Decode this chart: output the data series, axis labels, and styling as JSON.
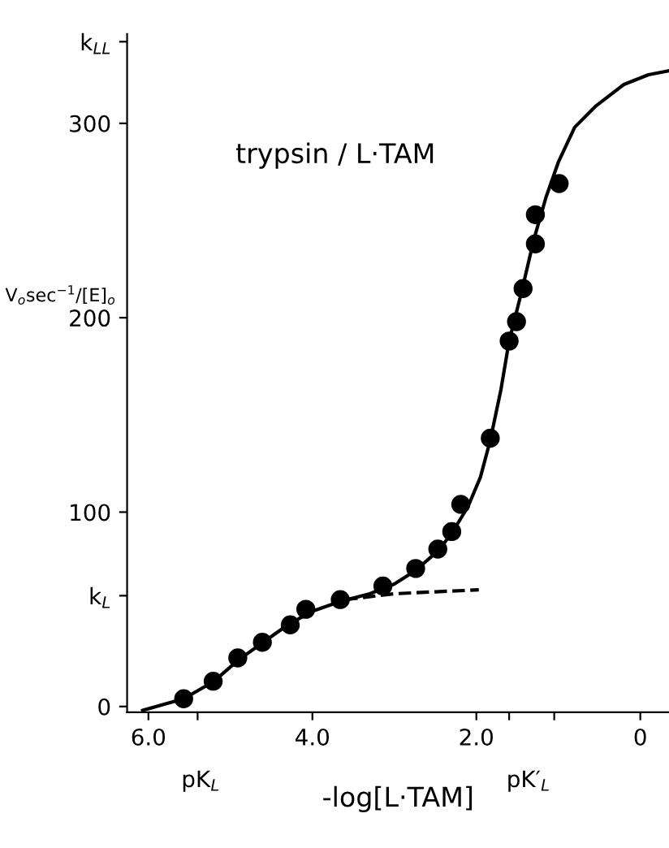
{
  "chart_data": {
    "type": "scatter",
    "xlabel": "-log[L·TAM]",
    "ylabel": "V$_{o}$sec$^{−1}$/[E]$_{o}$",
    "annotations": [
      "trypsin / L·TAM",
      "pK$_{L}$",
      "pK′$_{L}$"
    ],
    "xlim": [
      6.26,
      -0.35
    ],
    "ylim": [
      -3,
      346
    ],
    "xticks": [
      {
        "value": 6.0,
        "label": "6.0"
      },
      {
        "value": 4.0,
        "label": "4.0"
      },
      {
        "value": 2.0,
        "label": "2.0"
      },
      {
        "value": 0,
        "label": "0"
      },
      {
        "value": 5.4,
        "label": null
      },
      {
        "value": 1.6,
        "label": null
      },
      {
        "value": 1.05,
        "label": null
      }
    ],
    "yticks": [
      0,
      100,
      200,
      300,
      {
        "value": 57,
        "label": "k$_{L}$"
      },
      {
        "value": 342,
        "label": "k$_{LL}$"
      }
    ],
    "grid": false,
    "series": [
      {
        "marker": "circle",
        "color": "#000000",
        "x": [
          5.57,
          5.21,
          4.91,
          4.61,
          4.27,
          4.08,
          3.66,
          3.14,
          2.74,
          2.47,
          2.3,
          2.19,
          1.83,
          1.6,
          1.51,
          1.43,
          1.28,
          1.28,
          0.99
        ],
        "values": [
          4,
          13,
          25,
          33,
          42,
          50,
          55,
          62,
          71,
          81,
          90,
          104,
          138,
          188,
          198,
          215,
          238,
          253,
          269
        ]
      },
      {
        "type": "line",
        "color": "#000000",
        "line_style": "solid",
        "marker": "none",
        "x": [
          6.07,
          5.57,
          5.2,
          4.9,
          4.6,
          4.3,
          4.0,
          3.66,
          3.3,
          3.0,
          2.74,
          2.47,
          2.3,
          2.1,
          1.95,
          1.83,
          1.7,
          1.6,
          1.45,
          1.3,
          1.15,
          1.0,
          0.8,
          0.54,
          0.2,
          -0.1,
          -0.35
        ],
        "values": [
          -2,
          4,
          13,
          24,
          33,
          42,
          49,
          54,
          58,
          63,
          70,
          80,
          89,
          103,
          118,
          137,
          163,
          188,
          213,
          240,
          262,
          280,
          298,
          309,
          320,
          325,
          327
        ]
      },
      {
        "type": "line",
        "color": "#000000",
        "line_style": "dashed",
        "marker": "none",
        "x": [
          3.6,
          3.0,
          2.5,
          1.97
        ],
        "values": [
          55,
          58,
          59,
          60
        ]
      }
    ]
  }
}
